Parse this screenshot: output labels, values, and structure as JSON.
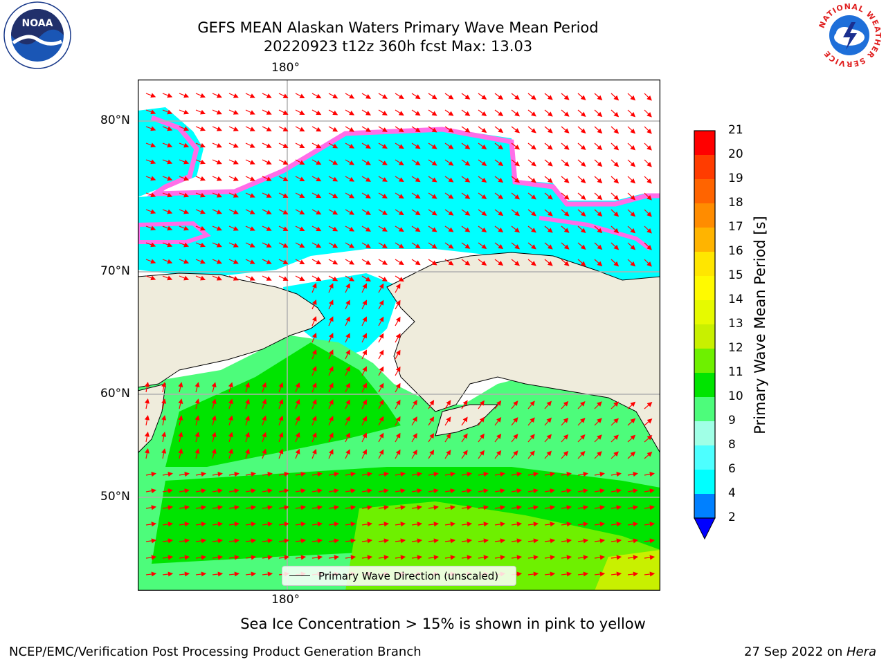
{
  "title_line1": "GEFS MEAN Alaskan Waters Primary Wave Mean Period",
  "title_line2": "20220923 t12z 360h fcst   Max: 13.03",
  "logos": {
    "noaa_text": "NOAA",
    "nws_ring_text": "NATIONAL WEATHER SERVICE"
  },
  "map": {
    "lon_label_top": "180°",
    "lon_label_bottom": "180°",
    "lat_labels": [
      "80°N",
      "70°N",
      "60°N",
      "50°N"
    ],
    "legend_label": "Primary Wave Direction (unscaled)",
    "colors": {
      "land": "#efecdc",
      "low_period": "#00ffff",
      "mid_period": "#4dfc7b",
      "high_period": "#00e400",
      "ice": "#ff6ee8",
      "arrow": "#ff0000"
    }
  },
  "colorbar": {
    "label": "Primary Wave Mean Period [s]",
    "ticks": [
      "21",
      "20",
      "19",
      "18",
      "17",
      "16",
      "15",
      "14",
      "13",
      "12",
      "11",
      "10",
      "9",
      "8",
      "6",
      "4",
      "2"
    ],
    "colors": [
      "#ff0000",
      "#ff3c00",
      "#ff6400",
      "#ff8c00",
      "#ffb400",
      "#ffe600",
      "#fffa00",
      "#e6fa00",
      "#c8f000",
      "#6ef000",
      "#00e400",
      "#4dfc7b",
      "#a0ffe6",
      "#4dffff",
      "#00ffff",
      "#0080ff"
    ],
    "extend_color": "#0000ff"
  },
  "note": "Sea Ice Concentration > 15% is shown in pink to yellow",
  "footer_left": "NCEP/EMC/Verification Post Processing Product Generation Branch",
  "footer_right_date": "27 Sep 2022 on ",
  "footer_right_host": "Hera"
}
